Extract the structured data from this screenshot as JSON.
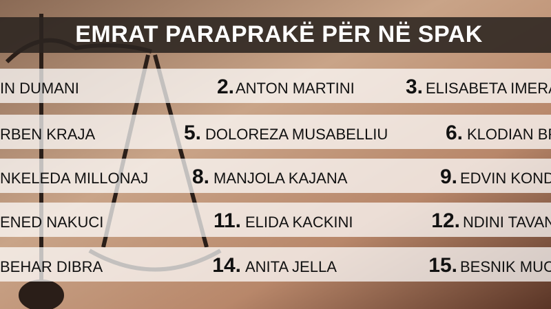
{
  "header": {
    "title": "EMRAT PARAPRAKË PËR NË SPAK"
  },
  "rows": [
    {
      "cells": [
        {
          "name": "IN DUMANI"
        },
        {
          "number": "2.",
          "name": "ANTON MARTINI"
        },
        {
          "number": "3.",
          "name": "ELISABETA IMERA"
        }
      ]
    },
    {
      "cells": [
        {
          "name": "RBEN KRAJA"
        },
        {
          "number": "5.",
          "name": "DOLOREZA MUSABELLIU"
        },
        {
          "number": "6.",
          "name": "KLODIAN BR"
        }
      ]
    },
    {
      "cells": [
        {
          "name": "NKELEDA MILLONAJ"
        },
        {
          "number": "8.",
          "name": "MANJOLA KAJANA"
        },
        {
          "number": "9.",
          "name": "EDVIN KOND"
        }
      ]
    },
    {
      "cells": [
        {
          "name": "ENED NAKUCI"
        },
        {
          "number": "11.",
          "name": "ELIDA KACKINI"
        },
        {
          "number": "12.",
          "name": "NDINI TAVAN"
        }
      ]
    },
    {
      "cells": [
        {
          "name": "BEHAR DIBRA"
        },
        {
          "number": "14.",
          "name": "ANITA JELLA"
        },
        {
          "number": "15.",
          "name": "BESNIK MUC"
        }
      ]
    }
  ]
}
